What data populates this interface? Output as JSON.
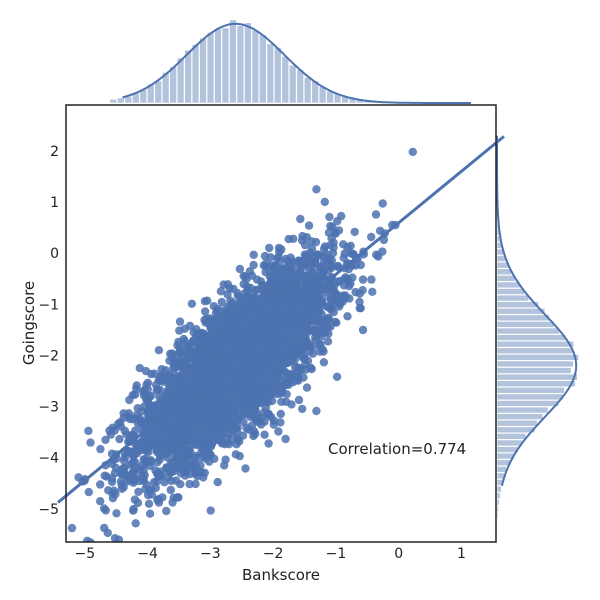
{
  "chart_data": {
    "type": "scatter",
    "subtype": "jointplot with marginal histograms, kde and regression line",
    "xlabel": "Bankscore",
    "ylabel": "Goingscore",
    "xlim": [
      -5.3,
      1.55
    ],
    "ylim": [
      -5.65,
      2.9
    ],
    "x_ticks": [
      -5,
      -4,
      -3,
      -2,
      -1,
      0,
      1
    ],
    "y_ticks": [
      -5,
      -4,
      -3,
      -2,
      -1,
      0,
      1,
      2
    ],
    "x_tick_labels": [
      "−5",
      "−4",
      "−3",
      "−2",
      "−1",
      "0",
      "1"
    ],
    "y_tick_labels": [
      "−5",
      "−4",
      "−3",
      "−2",
      "−1",
      "0",
      "1",
      "2"
    ],
    "grid": false,
    "legend": "none",
    "annotation": "Correlation=0.774",
    "regression": {
      "slope": 1.0,
      "intercept": 0.58
    },
    "marginal_x": {
      "mean": -2.6,
      "sd": 0.78
    },
    "marginal_y": {
      "mean": -2.2,
      "sd": 1.0
    },
    "colors": {
      "points": "#4c72b0",
      "line": "#4c72b0",
      "hist_fill": "#b4c3dc",
      "frame": "#222222"
    }
  }
}
